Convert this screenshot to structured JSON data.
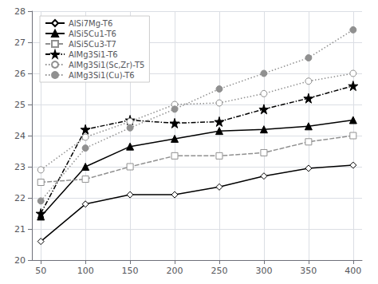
{
  "chart_data": {
    "type": "line",
    "x": [
      50,
      100,
      150,
      200,
      250,
      300,
      350,
      400
    ],
    "series": [
      {
        "name": "AlSi7Mg-T6",
        "color": "#000000",
        "marker": "open diamond",
        "line_style": "solid",
        "values": [
          20.6,
          21.8,
          22.1,
          22.1,
          22.35,
          22.7,
          22.95,
          23.05
        ]
      },
      {
        "name": "AlSi5Cu1-T6",
        "color": "#000000",
        "marker": "triangle",
        "line_style": "solid",
        "values": [
          21.4,
          23.0,
          23.65,
          23.9,
          24.15,
          24.2,
          24.3,
          24.5
        ]
      },
      {
        "name": "AlSi5Cu3-T7",
        "color": "#909090",
        "marker": "open square",
        "line_style": "dashed",
        "values": [
          22.5,
          22.6,
          23.0,
          23.35,
          23.35,
          23.45,
          23.8,
          24.0
        ]
      },
      {
        "name": "AlMg3Si1-T6",
        "color": "#000000",
        "marker": "star",
        "line_style": "dashdot",
        "values": [
          21.5,
          24.2,
          24.5,
          24.4,
          24.45,
          24.85,
          25.2,
          25.6
        ]
      },
      {
        "name": "AlMg3Si1(Sc,Zr)-T5",
        "color": "#909090",
        "marker": "open circle",
        "line_style": "dotted",
        "values": [
          22.9,
          23.95,
          24.45,
          25.0,
          25.05,
          25.35,
          25.75,
          26.0
        ]
      },
      {
        "name": "AlMg3Si1(Cu)-T6",
        "color": "#909090",
        "marker": "circle",
        "line_style": "dotted",
        "values": [
          21.9,
          23.6,
          24.25,
          24.85,
          25.5,
          26.0,
          26.5,
          27.4
        ]
      }
    ],
    "xlim": [
      40,
      410
    ],
    "ylim": [
      20,
      28
    ],
    "xticks": [
      50,
      100,
      150,
      200,
      250,
      300,
      350,
      400
    ],
    "yticks": [
      20,
      21,
      22,
      23,
      24,
      25,
      26,
      27,
      28
    ],
    "grid": true,
    "legend": "upper left"
  }
}
